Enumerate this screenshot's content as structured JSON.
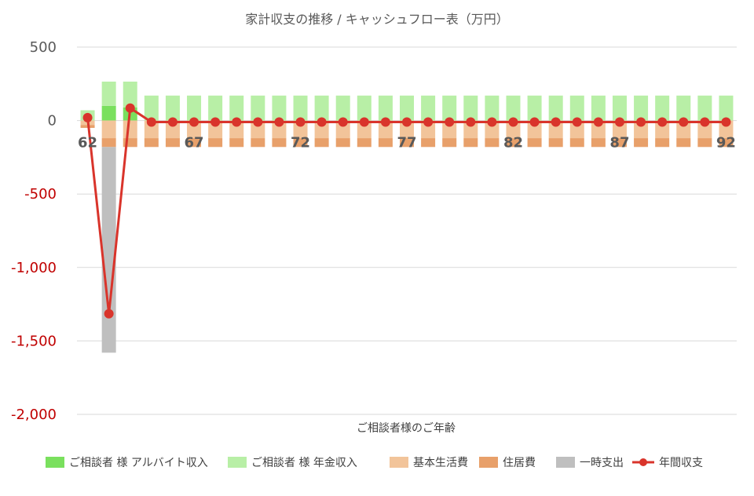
{
  "colors": {
    "arbeit": "#7ae05e",
    "pension": "#b8efa6",
    "living": "#f2c49a",
    "housing": "#e8a06a",
    "oneTime": "#bfbfbf",
    "net": "#d9342b",
    "negativeTick": "#c00000"
  },
  "chart_data": {
    "type": "bar",
    "title": "家計収支の推移 / キャッシュフロー表（万円）",
    "xlabel": "ご相談者様のご年齢",
    "ylabel": "",
    "ylim": [
      -2000,
      500
    ],
    "yticks": [
      500,
      0,
      -500,
      -1000,
      -1500,
      -2000
    ],
    "ytick_labels": [
      "500",
      "0",
      "-500",
      "-1,000",
      "-1,500",
      "-2,000"
    ],
    "x": [
      62,
      63,
      64,
      65,
      66,
      67,
      68,
      69,
      70,
      71,
      72,
      73,
      74,
      75,
      76,
      77,
      78,
      79,
      80,
      81,
      82,
      83,
      84,
      85,
      86,
      87,
      88,
      89,
      90,
      91,
      92
    ],
    "xtick_labels": [
      "62",
      "67",
      "72",
      "77",
      "82",
      "87",
      "92"
    ],
    "legend_position": "bottom",
    "grid": true,
    "series": [
      {
        "name": "ご相談者 様 アルバイト収入",
        "kind": "bar",
        "colorKey": "arbeit",
        "values": [
          0,
          100,
          90,
          0,
          0,
          0,
          0,
          0,
          0,
          0,
          0,
          0,
          0,
          0,
          0,
          0,
          0,
          0,
          0,
          0,
          0,
          0,
          0,
          0,
          0,
          0,
          0,
          0,
          0,
          0,
          0
        ]
      },
      {
        "name": "ご相談者 様 年金収入",
        "kind": "bar",
        "colorKey": "pension",
        "values": [
          70,
          165,
          175,
          170,
          170,
          170,
          170,
          170,
          170,
          170,
          170,
          170,
          170,
          170,
          170,
          170,
          170,
          170,
          170,
          170,
          170,
          170,
          170,
          170,
          170,
          170,
          170,
          170,
          170,
          170,
          170
        ]
      },
      {
        "name": "基本生活費",
        "kind": "bar",
        "colorKey": "living",
        "values": [
          -30,
          -120,
          -120,
          -120,
          -120,
          -120,
          -120,
          -120,
          -120,
          -120,
          -120,
          -120,
          -120,
          -120,
          -120,
          -120,
          -120,
          -120,
          -120,
          -120,
          -120,
          -120,
          -120,
          -120,
          -120,
          -120,
          -120,
          -120,
          -120,
          -120,
          -120
        ]
      },
      {
        "name": "住居費",
        "kind": "bar",
        "colorKey": "housing",
        "values": [
          -20,
          -60,
          -60,
          -60,
          -60,
          -60,
          -60,
          -60,
          -60,
          -60,
          -60,
          -60,
          -60,
          -60,
          -60,
          -60,
          -60,
          -60,
          -60,
          -60,
          -60,
          -60,
          -60,
          -60,
          -60,
          -60,
          -60,
          -60,
          -60,
          -60,
          -60
        ]
      },
      {
        "name": "一時支出",
        "kind": "bar",
        "colorKey": "oneTime",
        "values": [
          0,
          -1400,
          0,
          0,
          0,
          0,
          0,
          0,
          0,
          0,
          0,
          0,
          0,
          0,
          0,
          0,
          0,
          0,
          0,
          0,
          0,
          0,
          0,
          0,
          0,
          0,
          0,
          0,
          0,
          0,
          0
        ]
      },
      {
        "name": "年間収支",
        "kind": "line",
        "colorKey": "net",
        "values": [
          20,
          -1315,
          85,
          -10,
          -10,
          -10,
          -10,
          -10,
          -10,
          -10,
          -10,
          -10,
          -10,
          -10,
          -10,
          -10,
          -10,
          -10,
          -10,
          -10,
          -10,
          -10,
          -10,
          -10,
          -10,
          -10,
          -10,
          -10,
          -10,
          -10,
          -10
        ]
      }
    ]
  }
}
